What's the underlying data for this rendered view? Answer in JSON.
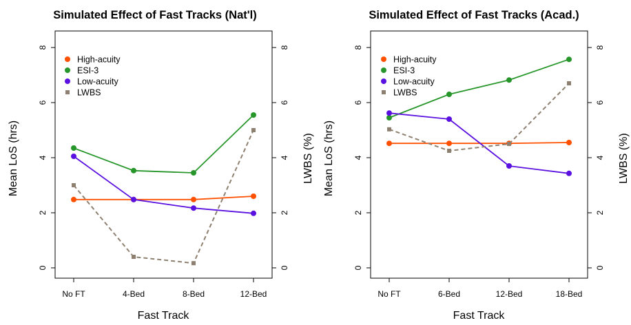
{
  "colors": {
    "high": "#ff5000",
    "esi": "#27962a",
    "low": "#5a10e0",
    "lwbs": "#8e8070"
  },
  "panels": [
    {
      "title": "Simulated Effect of Fast Tracks (Nat'l)",
      "xlabel": "Fast Track",
      "ylabel_left": "Mean LoS (hrs)",
      "ylabel_right": "LWBS (%)",
      "legend": [
        "High-acuity",
        "ESI-3",
        "Low-acuity",
        "LWBS"
      ]
    },
    {
      "title": "Simulated Effect of Fast Tracks (Acad.)",
      "xlabel": "Fast Track",
      "ylabel_left": "Mean LoS (hrs)",
      "ylabel_right": "LWBS (%)",
      "legend": [
        "High-acuity",
        "ESI-3",
        "Low-acuity",
        "LWBS"
      ]
    }
  ],
  "chart_data": [
    {
      "type": "line",
      "title": "Simulated Effect of Fast Tracks (Nat'l)",
      "xlabel": "Fast Track",
      "ylabel": "Mean LoS (hrs)",
      "ylabel_right": "LWBS (%)",
      "categories": [
        "No FT",
        "4-Bed",
        "8-Bed",
        "12-Bed"
      ],
      "ylim": [
        0,
        8
      ],
      "ylim_right": [
        0,
        8
      ],
      "yticks": [
        "0",
        "2",
        "4",
        "6",
        "8"
      ],
      "legend_position": "top-left",
      "grid": false,
      "series": [
        {
          "name": "High-acuity",
          "axis": "left",
          "style": "solid",
          "values": [
            2.48,
            2.48,
            2.48,
            2.6
          ]
        },
        {
          "name": "ESI-3",
          "axis": "left",
          "style": "solid",
          "values": [
            4.35,
            3.53,
            3.45,
            5.55
          ]
        },
        {
          "name": "Low-acuity",
          "axis": "left",
          "style": "solid",
          "values": [
            4.05,
            2.48,
            2.17,
            1.98
          ]
        },
        {
          "name": "LWBS",
          "axis": "right",
          "style": "dashed",
          "values": [
            3.0,
            0.4,
            0.17,
            5.0
          ]
        }
      ]
    },
    {
      "type": "line",
      "title": "Simulated Effect of Fast Tracks (Acad.)",
      "xlabel": "Fast Track",
      "ylabel": "Mean LoS (hrs)",
      "ylabel_right": "LWBS (%)",
      "categories": [
        "No FT",
        "6-Bed",
        "12-Bed",
        "18-Bed"
      ],
      "ylim": [
        0,
        8
      ],
      "ylim_right": [
        0,
        8
      ],
      "yticks": [
        "0",
        "2",
        "4",
        "6",
        "8"
      ],
      "legend_position": "top-left",
      "grid": false,
      "series": [
        {
          "name": "High-acuity",
          "axis": "left",
          "style": "solid",
          "values": [
            4.52,
            4.52,
            4.52,
            4.55
          ]
        },
        {
          "name": "ESI-3",
          "axis": "left",
          "style": "solid",
          "values": [
            5.45,
            6.3,
            6.82,
            7.57
          ]
        },
        {
          "name": "Low-acuity",
          "axis": "left",
          "style": "solid",
          "values": [
            5.62,
            5.4,
            3.7,
            3.43
          ]
        },
        {
          "name": "LWBS",
          "axis": "right",
          "style": "dashed",
          "values": [
            5.03,
            4.25,
            4.5,
            6.7
          ]
        }
      ]
    }
  ]
}
